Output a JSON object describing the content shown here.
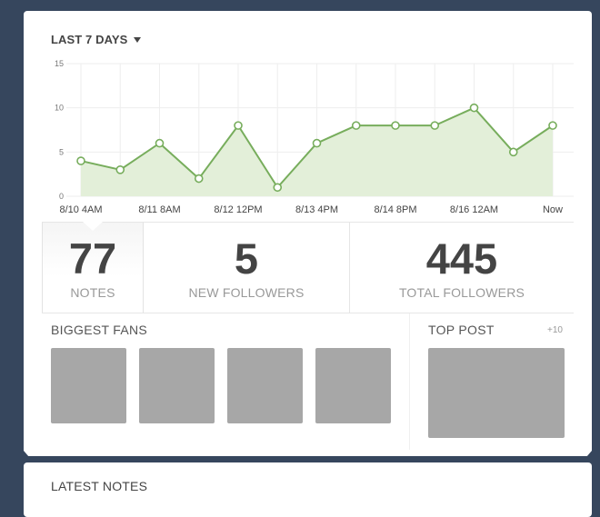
{
  "range_selector": {
    "label": "LAST 7 DAYS"
  },
  "chart_data": {
    "type": "area",
    "x_tick_labels": [
      "8/10 4AM",
      "8/11 8AM",
      "8/12 12PM",
      "8/13 4PM",
      "8/14 8PM",
      "8/16 12AM",
      "Now"
    ],
    "y_ticks": [
      0,
      5,
      10,
      15
    ],
    "ylim": [
      0,
      15
    ],
    "series": [
      {
        "values": [
          4,
          3,
          6,
          2,
          8,
          1,
          6,
          8,
          8,
          8,
          10,
          5,
          8
        ]
      }
    ],
    "grid": true,
    "colors": {
      "line": "#77ad5c",
      "fill": "#e3efd9",
      "grid": "#eeeeee",
      "point_fill": "#ffffff"
    }
  },
  "stats": [
    {
      "value": "77",
      "label": "NOTES"
    },
    {
      "value": "5",
      "label": "NEW FOLLOWERS"
    },
    {
      "value": "445",
      "label": "TOTAL FOLLOWERS"
    }
  ],
  "biggest_fans": {
    "title": "BIGGEST FANS",
    "count": 4
  },
  "top_post": {
    "title": "TOP POST",
    "count_label": "+10"
  },
  "latest_notes": {
    "title": "LATEST NOTES"
  }
}
